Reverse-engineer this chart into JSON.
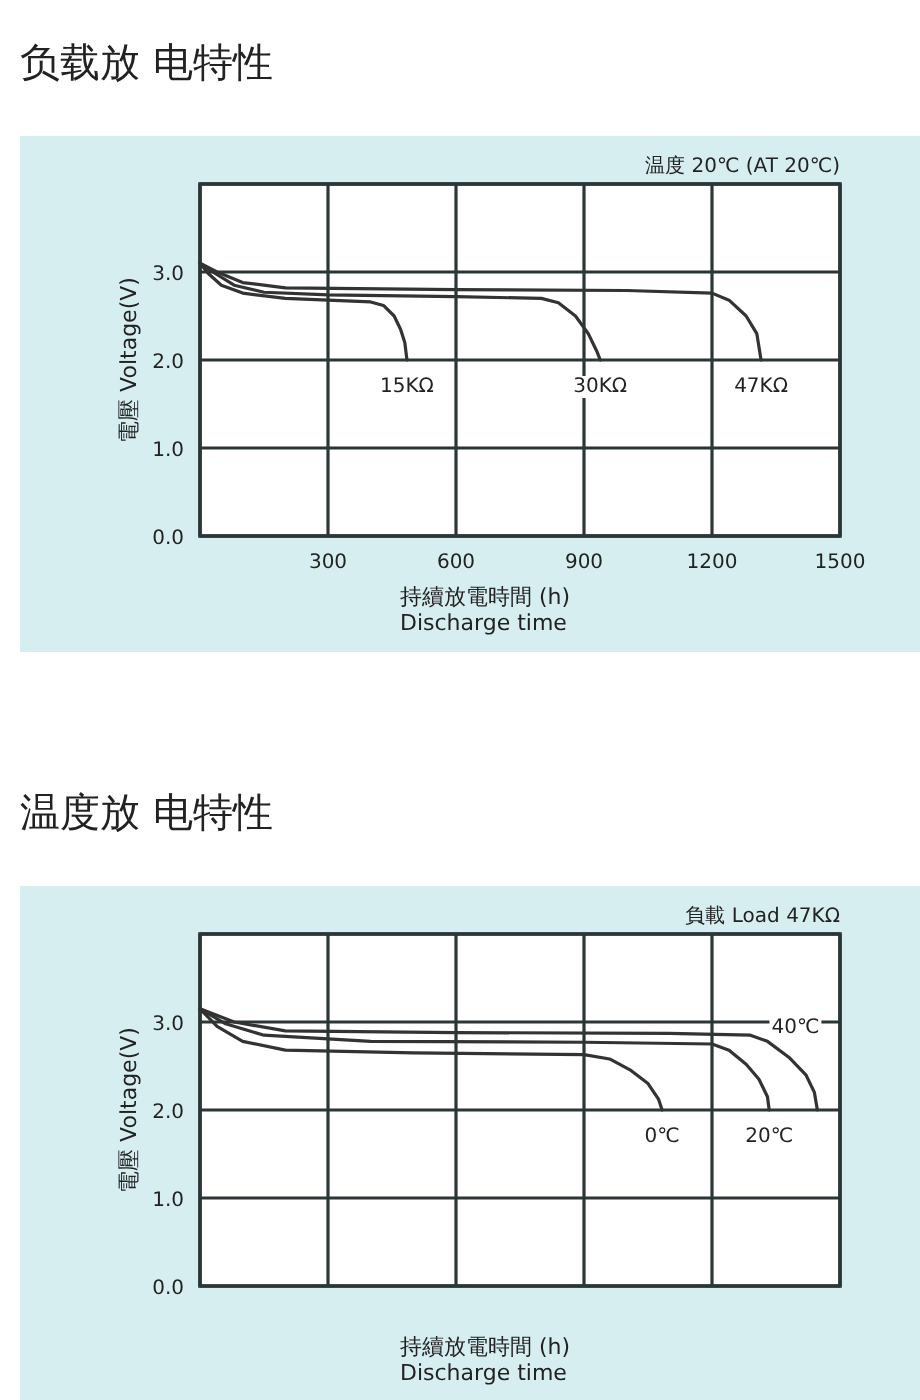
{
  "chart_data": [
    {
      "type": "line",
      "title": "负载放 电特性",
      "ylabel": "電壓 Voltage(V)",
      "xlabel": "持續放電時間 (h)\nDischarge time",
      "annotations": [
        "温度 20℃ (AT 20℃)"
      ],
      "xlim": [
        0,
        1500
      ],
      "xticks": [
        {
          "value": 0,
          "label": null
        },
        300,
        600,
        900,
        1200,
        1500
      ],
      "ylim": [
        0,
        4
      ],
      "yticks": [
        {
          "value": 0,
          "label": "0.0"
        },
        {
          "value": 1,
          "label": "1.0"
        },
        {
          "value": 2,
          "label": "2.0"
        },
        {
          "value": 3,
          "label": "3.0"
        },
        {
          "value": 4,
          "label": null
        }
      ],
      "grid": true,
      "line_style": "solid",
      "marker": "none",
      "series": [
        {
          "name": "15KΩ",
          "color": "#333333",
          "x": [
            0,
            20,
            50,
            100,
            200,
            300,
            400,
            430,
            455,
            470,
            480,
            485
          ],
          "values": [
            3.1,
            2.98,
            2.85,
            2.76,
            2.7,
            2.68,
            2.66,
            2.62,
            2.5,
            2.35,
            2.2,
            2.0
          ]
        },
        {
          "name": "30KΩ",
          "color": "#333333",
          "x": [
            0,
            30,
            80,
            150,
            300,
            600,
            800,
            840,
            880,
            910,
            930,
            938
          ],
          "values": [
            3.1,
            3.0,
            2.85,
            2.77,
            2.74,
            2.72,
            2.7,
            2.65,
            2.5,
            2.3,
            2.1,
            2.0
          ]
        },
        {
          "name": "47KΩ",
          "color": "#333333",
          "x": [
            0,
            40,
            100,
            200,
            600,
            1000,
            1200,
            1240,
            1280,
            1305,
            1315
          ],
          "values": [
            3.1,
            3.0,
            2.88,
            2.82,
            2.8,
            2.79,
            2.76,
            2.68,
            2.5,
            2.3,
            2.0
          ]
        }
      ]
    },
    {
      "type": "line",
      "title": "温度放 电特性",
      "ylabel": "電壓 Voltage(V)",
      "xlabel": "持續放電時間 (h)\nDischarge time",
      "annotations": [
        "負載 Load 47KΩ"
      ],
      "xlim": [
        0,
        1500
      ],
      "xticks": [
        {
          "value": 0,
          "label": null
        },
        {
          "value": 300,
          "label": null
        },
        {
          "value": 600,
          "label": null
        },
        {
          "value": 900,
          "label": null
        },
        {
          "value": 1200,
          "label": null
        },
        {
          "value": 1500,
          "label": null
        }
      ],
      "ylim": [
        0,
        4
      ],
      "yticks": [
        {
          "value": 0,
          "label": "0.0"
        },
        {
          "value": 1,
          "label": "1.0"
        },
        {
          "value": 2,
          "label": "2.0"
        },
        {
          "value": 3,
          "label": "3.0"
        },
        {
          "value": 4,
          "label": null
        }
      ],
      "tick_labels": "y",
      "grid": true,
      "line_style": "solid",
      "marker": "none",
      "series": [
        {
          "name": "0℃",
          "color": "#333333",
          "x": [
            0,
            40,
            100,
            200,
            500,
            900,
            960,
            1010,
            1050,
            1075,
            1083
          ],
          "values": [
            3.15,
            2.95,
            2.78,
            2.68,
            2.65,
            2.63,
            2.58,
            2.45,
            2.3,
            2.12,
            2.0
          ]
        },
        {
          "name": "20℃",
          "color": "#333333",
          "x": [
            0,
            60,
            150,
            400,
            900,
            1200,
            1240,
            1280,
            1310,
            1330,
            1334
          ],
          "values": [
            3.15,
            2.98,
            2.85,
            2.78,
            2.77,
            2.75,
            2.68,
            2.52,
            2.35,
            2.15,
            2.0
          ]
        },
        {
          "name": "40℃",
          "color": "#333333",
          "x": [
            0,
            80,
            200,
            600,
            1100,
            1290,
            1330,
            1380,
            1420,
            1440,
            1447
          ],
          "values": [
            3.15,
            3.0,
            2.9,
            2.88,
            2.87,
            2.85,
            2.78,
            2.6,
            2.4,
            2.2,
            2.0
          ]
        }
      ]
    }
  ]
}
